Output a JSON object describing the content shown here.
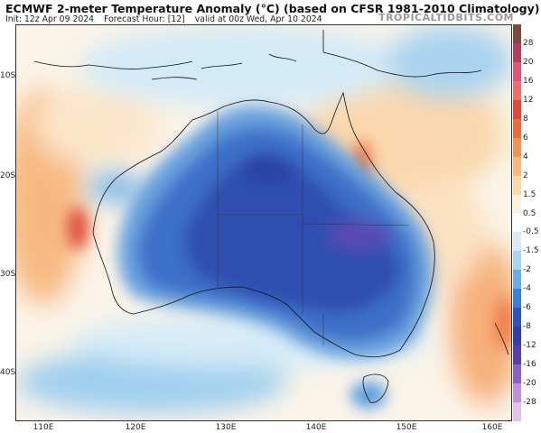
{
  "header": {
    "title": "ECMWF 2-meter Temperature Anomaly (°C) (based on CFSR 1981-2010 Climatology)",
    "init": "Init: 12z Apr 09 2024",
    "forecast_hour": "Forecast Hour: [12]",
    "valid": "valid at 00z Wed, Apr 10 2024",
    "brand": "TROPICALTIDBITS.COM"
  },
  "axes": {
    "lat_labels": [
      "10S",
      "20S",
      "30S",
      "40S"
    ],
    "lon_labels": [
      "110E",
      "120E",
      "130E",
      "140E",
      "150E",
      "160E"
    ]
  },
  "colorbar": {
    "labels": [
      "28",
      "20",
      "16",
      "12",
      "8",
      "6",
      "4",
      "2",
      "1.5",
      "0.5",
      "-0.5",
      "-1.5",
      "-2",
      "-4",
      "-6",
      "-8",
      "-12",
      "-16",
      "-20",
      "-28"
    ],
    "colors": [
      "#7a4a3a",
      "#b0405c",
      "#d8567a",
      "#ec6e6e",
      "#e2453a",
      "#ec6d3c",
      "#f29452",
      "#f8b97a",
      "#fbd8a8",
      "#fdf1de",
      "#ffffff",
      "#d6ecf8",
      "#a7d4f0",
      "#6aaee6",
      "#3d7fd4",
      "#2f55b8",
      "#3140a0",
      "#5b3ea8",
      "#9060c0",
      "#c090d8",
      "#e2c2ea"
    ]
  }
}
